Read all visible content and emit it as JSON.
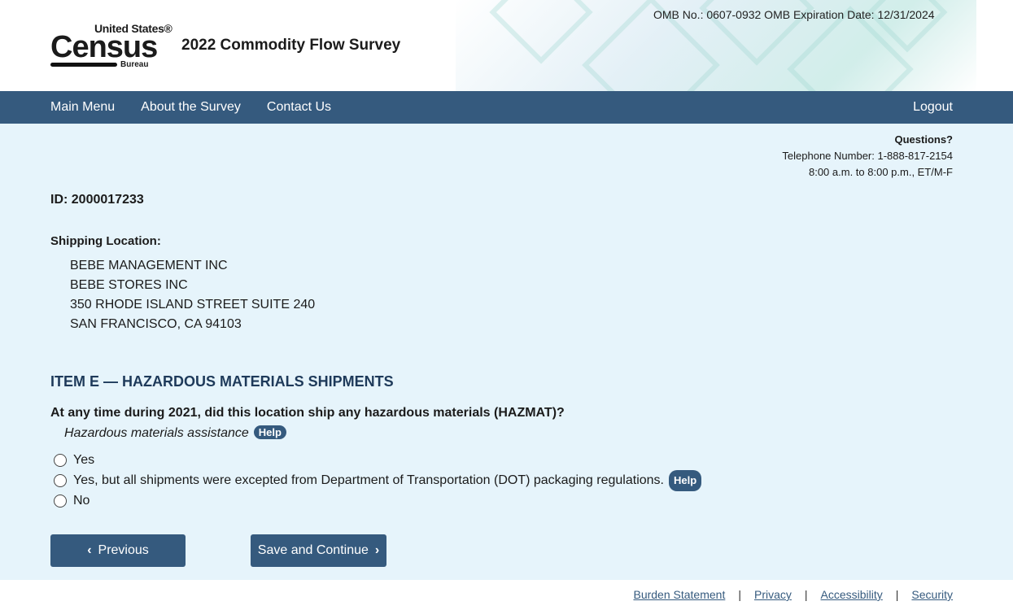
{
  "header": {
    "logo_text": {
      "top": "United States®",
      "main": "Census",
      "bottom": "Bureau"
    },
    "title": "2022 Commodity Flow Survey",
    "omb": "OMB No.: 0607-0932 OMB Expiration Date: 12/31/2024"
  },
  "nav": {
    "items": [
      "Main Menu",
      "About the Survey",
      "Contact Us"
    ],
    "logout": "Logout"
  },
  "questions": {
    "heading": "Questions?",
    "phone": "Telephone Number: 1-888-817-2154",
    "hours": "8:00 a.m. to 8:00 p.m., ET/M-F"
  },
  "id_label": "ID: 2000017233",
  "shipping": {
    "label": "Shipping Location:",
    "lines": [
      "BEBE MANAGEMENT INC",
      "BEBE STORES INC",
      "350 RHODE ISLAND STREET SUITE 240",
      "SAN FRANCISCO, CA 94103"
    ]
  },
  "item": {
    "title": "ITEM E — HAZARDOUS MATERIALS SHIPMENTS",
    "question": "At any time during 2021, did this location ship any hazardous materials (HAZMAT)?",
    "assist": "Hazardous materials assistance",
    "help": "Help",
    "options": [
      "Yes",
      "Yes, but all shipments were excepted from Department of Transportation (DOT) packaging regulations.",
      "No"
    ]
  },
  "buttons": {
    "previous": "Previous",
    "next": "Save and Continue"
  },
  "footer": {
    "links": [
      "Burden Statement",
      "Privacy",
      "Accessibility",
      "Security"
    ],
    "sep": "|"
  },
  "colors": {
    "nav": "#355a7e",
    "background": "#e6f4fb",
    "heading": "#1e3a5a"
  }
}
